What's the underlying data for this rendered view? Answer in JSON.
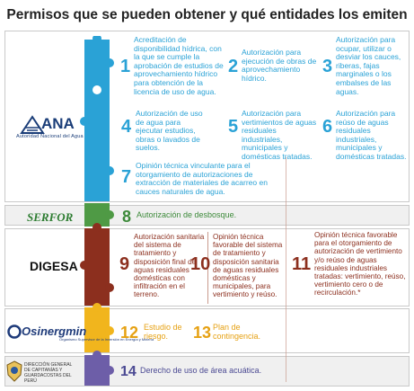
{
  "title": "Permisos que se pueden obtener y qué entidades los emiten",
  "entities": {
    "ana": {
      "name": "ANA",
      "subtitle": "Autoridad Nacional del Agua"
    },
    "serfor": {
      "name": "SERFOR"
    },
    "digesa": {
      "name": "DIGESA"
    },
    "osinergmin": {
      "name": "Osinergmin",
      "subtitle": "Organismo Supervisor de la Inversión en Energía y Minería"
    },
    "dicapi": {
      "name": "DIRECCIÓN GENERAL DE CAPITANÍAS Y GUARDACOSTAS DEL PERÚ"
    }
  },
  "permits": [
    {
      "n": "1",
      "text": "Acreditación de disponibilidad hídrica, con la que se cumple la aprobación de estudios de aprovechamiento hídrico para obtención de la licencia de uso de agua."
    },
    {
      "n": "2",
      "text": "Autorización para ejecución de obras de aprovechamiento hídrico."
    },
    {
      "n": "3",
      "text": "Autorización para ocupar, utilizar o desviar los cauces, riberas, fajas marginales o los embalses de las aguas."
    },
    {
      "n": "4",
      "text": "Autorización de uso de agua para ejecutar estudios, obras o lavados de suelos."
    },
    {
      "n": "5",
      "text": "Autorización para vertimientos de aguas residuales industriales, municipales y domésticas tratadas."
    },
    {
      "n": "6",
      "text": "Autorización para reúso de aguas residuales industriales, municipales y domésticas tratadas."
    },
    {
      "n": "7",
      "text": "Opinión técnica vinculante para el otorgamiento de autorizaciones de extracción de materiales de acarreo en cauces naturales de agua."
    },
    {
      "n": "8",
      "text": "Autorización de desbosque."
    },
    {
      "n": "9",
      "text": "Autorización sanitaria del sistema de tratamiento y disposición final de aguas residuales domésticas con infiltración en el terreno."
    },
    {
      "n": "10",
      "text": "Opinión técnica favorable del sistema de tratamiento y disposición sanitaria de aguas residuales domésticas y municipales, para vertimiento y reúso."
    },
    {
      "n": "11",
      "text": "Opinión técnica favorable para el otorgamiento de autorización de vertimiento y/o reúso de aguas residuales industriales tratadas: vertimiento, reúso, vertimiento cero o de recirculación.*"
    },
    {
      "n": "12",
      "text": "Estudio de riesgo."
    },
    {
      "n": "13",
      "text": "Plan de contingencia."
    },
    {
      "n": "14",
      "text": "Derecho de uso de área acuática."
    }
  ],
  "colors": {
    "ana": "#2aa2d6",
    "serfor": "#4f9a45",
    "digesa": "#8c2f1e",
    "osinergmin": "#f1b51d",
    "dicapi": "#6d5ea8"
  }
}
